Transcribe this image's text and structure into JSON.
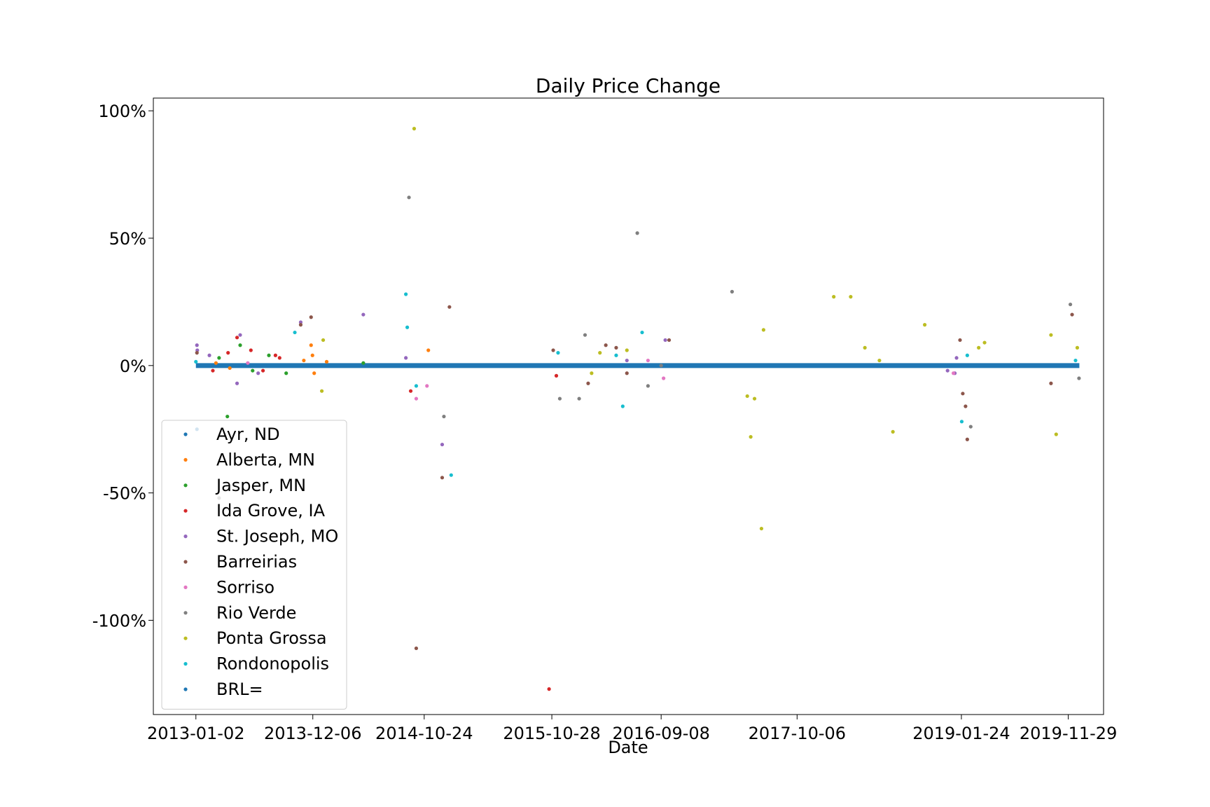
{
  "chart_data": {
    "type": "scatter",
    "title": "Daily Price Change",
    "xlabel": "Date",
    "ylabel": "",
    "x_range": [
      "2012-09-01",
      "2020-03-10"
    ],
    "ylim": [
      -137,
      105
    ],
    "x_ticks": [
      "2013-01-02",
      "2013-12-06",
      "2014-10-24",
      "2015-10-28",
      "2016-09-08",
      "2017-10-06",
      "2019-01-24",
      "2019-11-29"
    ],
    "y_ticks": [
      {
        "value": 100,
        "label": "100%"
      },
      {
        "value": 50,
        "label": "50%"
      },
      {
        "value": 0,
        "label": "0%"
      },
      {
        "value": -50,
        "label": "-50%"
      },
      {
        "value": -100,
        "label": "-100%"
      }
    ],
    "grid": false,
    "legend_position": "lower-left",
    "baseline": {
      "series": "BRL=",
      "color": "#1f77b4",
      "x_start": "2013-01-02",
      "x_end": "2019-12-31",
      "value": 0
    },
    "series": [
      {
        "name": "Ayr, ND",
        "color": "#1f77b4",
        "points": [
          [
            "2013-01-05",
            -25
          ]
        ]
      },
      {
        "name": "Alberta, MN",
        "color": "#ff7f0e",
        "points": [
          [
            "2013-12-01",
            8
          ],
          [
            "2013-12-05",
            4
          ],
          [
            "2013-12-10",
            -3
          ],
          [
            "2013-11-10",
            2
          ],
          [
            "2014-01-15",
            1.5
          ],
          [
            "2014-11-05",
            6
          ],
          [
            "2013-03-01",
            1
          ],
          [
            "2013-04-10",
            -1
          ]
        ]
      },
      {
        "name": "Jasper, MN",
        "color": "#2ca02c",
        "points": [
          [
            "2013-04-03",
            -20
          ],
          [
            "2013-05-10",
            8
          ],
          [
            "2013-03-10",
            3
          ],
          [
            "2013-06-15",
            -2
          ],
          [
            "2013-08-01",
            4
          ],
          [
            "2013-09-20",
            -3
          ],
          [
            "2014-05-01",
            1
          ]
        ]
      },
      {
        "name": "Ida Grove, IA",
        "color": "#d62728",
        "points": [
          [
            "2013-05-01",
            11
          ],
          [
            "2013-04-05",
            5
          ],
          [
            "2013-06-10",
            6
          ],
          [
            "2013-07-15",
            -2
          ],
          [
            "2013-08-20",
            4
          ],
          [
            "2015-10-20",
            -127
          ],
          [
            "2013-02-20",
            -2
          ],
          [
            "2013-09-01",
            3
          ],
          [
            "2014-09-15",
            -10
          ],
          [
            "2015-11-10",
            -4
          ]
        ]
      },
      {
        "name": "St. Joseph, MO",
        "color": "#9467bd",
        "points": [
          [
            "2013-05-10",
            12
          ],
          [
            "2013-05-01",
            -7
          ],
          [
            "2013-11-01",
            17
          ],
          [
            "2014-05-01",
            20
          ],
          [
            "2014-12-15",
            -31
          ],
          [
            "2013-07-01",
            -3
          ],
          [
            "2013-02-10",
            4
          ],
          [
            "2014-09-01",
            3
          ],
          [
            "2016-06-01",
            2
          ],
          [
            "2016-09-20",
            10
          ],
          [
            "2018-12-15",
            -2
          ],
          [
            "2019-01-10",
            3
          ],
          [
            "2019-01-05",
            -3
          ],
          [
            "2013-01-05",
            8
          ],
          [
            "2013-01-06",
            6
          ]
        ]
      },
      {
        "name": "Barreirias",
        "color": "#8c564b",
        "points": [
          [
            "2013-11-01",
            16
          ],
          [
            "2013-12-01",
            19
          ],
          [
            "2014-10-01",
            -111
          ],
          [
            "2014-12-15",
            -44
          ],
          [
            "2015-01-05",
            23
          ],
          [
            "2016-04-01",
            8
          ],
          [
            "2015-11-01",
            6
          ],
          [
            "2016-05-01",
            7
          ],
          [
            "2016-06-01",
            -3
          ],
          [
            "2016-02-10",
            -7
          ],
          [
            "2016-10-01",
            10
          ],
          [
            "2019-01-20",
            10
          ],
          [
            "2019-02-10",
            -29
          ],
          [
            "2019-02-05",
            -16
          ],
          [
            "2019-01-28",
            -11
          ],
          [
            "2019-12-10",
            20
          ],
          [
            "2019-10-10",
            -7
          ],
          [
            "2013-01-05",
            5
          ]
        ]
      },
      {
        "name": "Sorriso",
        "color": "#e377c2",
        "points": [
          [
            "2014-10-01",
            -13
          ],
          [
            "2014-11-01",
            -8
          ],
          [
            "2016-08-01",
            2
          ],
          [
            "2016-09-15",
            -5
          ],
          [
            "2019-01-01",
            -3
          ],
          [
            "2013-06-01",
            1
          ]
        ]
      },
      {
        "name": "Rio Verde",
        "color": "#7f7f7f",
        "points": [
          [
            "2014-09-10",
            66
          ],
          [
            "2016-07-01",
            52
          ],
          [
            "2016-09-08",
            0
          ],
          [
            "2017-04-01",
            29
          ],
          [
            "2014-12-20",
            -20
          ],
          [
            "2015-11-20",
            -13
          ],
          [
            "2016-02-01",
            12
          ],
          [
            "2016-01-15",
            -13
          ],
          [
            "2016-08-01",
            -8
          ],
          [
            "2019-12-05",
            24
          ],
          [
            "2019-12-30",
            -5
          ],
          [
            "2019-02-20",
            -24
          ],
          [
            "2013-03-10",
            -52
          ]
        ]
      },
      {
        "name": "Ponta Grossa",
        "color": "#bcbd22",
        "points": [
          [
            "2014-09-25",
            93
          ],
          [
            "2014-01-05",
            10
          ],
          [
            "2014-01-01",
            -10
          ],
          [
            "2016-03-15",
            5
          ],
          [
            "2016-06-01",
            6
          ],
          [
            "2017-05-15",
            -12
          ],
          [
            "2017-05-25",
            -28
          ],
          [
            "2017-06-25",
            -64
          ],
          [
            "2017-07-01",
            14
          ],
          [
            "2017-06-05",
            -13
          ],
          [
            "2018-01-20",
            27
          ],
          [
            "2018-03-10",
            27
          ],
          [
            "2018-04-20",
            7
          ],
          [
            "2018-07-10",
            -26
          ],
          [
            "2018-10-10",
            16
          ],
          [
            "2019-04-01",
            9
          ],
          [
            "2019-03-15",
            7
          ],
          [
            "2019-10-10",
            12
          ],
          [
            "2019-10-25",
            -27
          ],
          [
            "2019-12-25",
            7
          ],
          [
            "2018-06-01",
            2
          ],
          [
            "2016-02-20",
            -3
          ]
        ]
      },
      {
        "name": "Rondonopolis",
        "color": "#17becf",
        "points": [
          [
            "2014-09-01",
            28
          ],
          [
            "2014-09-05",
            15
          ],
          [
            "2015-01-10",
            -43
          ],
          [
            "2013-10-15",
            13
          ],
          [
            "2016-07-15",
            13
          ],
          [
            "2016-05-01",
            4
          ],
          [
            "2016-05-20",
            -16
          ],
          [
            "2019-01-25",
            -22
          ],
          [
            "2019-02-10",
            4
          ],
          [
            "2014-10-01",
            -8
          ],
          [
            "2015-11-15",
            5
          ],
          [
            "2013-01-02",
            1.5
          ],
          [
            "2019-12-20",
            2
          ]
        ]
      }
    ],
    "legend": [
      "Ayr, ND",
      "Alberta, MN",
      "Jasper, MN",
      "Ida Grove, IA",
      "St. Joseph, MO",
      "Barreirias",
      "Sorriso",
      "Rio Verde",
      "Ponta Grossa",
      "Rondonopolis",
      "BRL="
    ]
  }
}
